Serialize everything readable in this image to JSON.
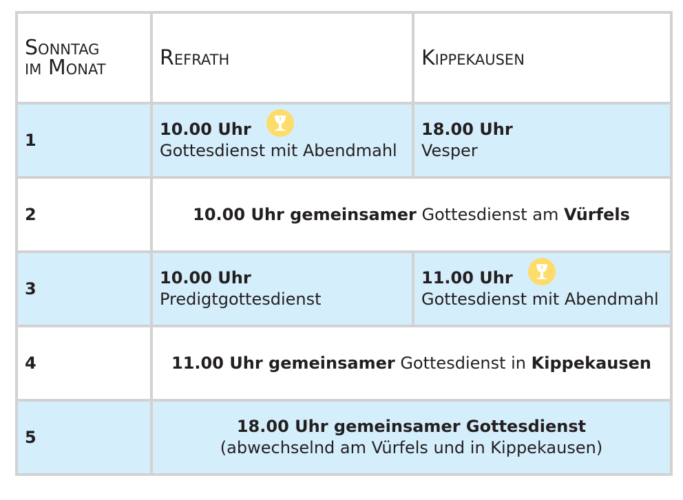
{
  "header": {
    "col0": "Sonntag im Monat",
    "col0_line1": "Sonntag",
    "col0_line2": "im Monat",
    "col1": "Refrath",
    "col2": "Kippekausen"
  },
  "colors": {
    "row_blue": "#d5eefb",
    "border": "#d2d2d2",
    "chalice": "#fddc6a"
  },
  "rows": [
    {
      "num": "1",
      "refrath": {
        "time": "10.00 Uhr",
        "desc": "Gottesdienst mit Abendmahl",
        "icon": "chalice-icon"
      },
      "kippekausen": {
        "time": "18.00 Uhr",
        "desc": "Vesper"
      }
    },
    {
      "num": "2",
      "joint": {
        "bold1": "10.00 Uhr gemeinsamer",
        "text": " Gottesdienst am ",
        "bold2": "Vürfels"
      }
    },
    {
      "num": "3",
      "refrath": {
        "time": "10.00 Uhr",
        "desc": "Predigtgottesdienst"
      },
      "kippekausen": {
        "time": "11.00 Uhr",
        "desc": "Gottesdienst mit Abendmahl",
        "icon": "chalice-icon"
      }
    },
    {
      "num": "4",
      "joint": {
        "bold1": "11.00 Uhr gemeinsamer",
        "text": " Gottesdienst in ",
        "bold2": "Kippekausen"
      }
    },
    {
      "num": "5",
      "joint": {
        "bold1": "18.00 Uhr gemeinsamer Gottesdienst",
        "line2": "(abwechselnd am Vürfels und in Kippekausen)"
      }
    }
  ]
}
